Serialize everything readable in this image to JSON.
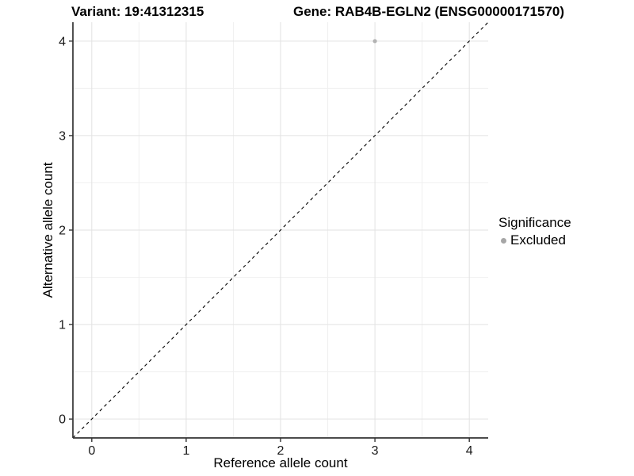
{
  "chart_data": {
    "type": "scatter",
    "titles": {
      "left": "Variant: 19:41312315",
      "right": "Gene: RAB4B-EGLN2 (ENSG00000171570)"
    },
    "xlabel": "Reference allele count",
    "ylabel": "Alternative allele count",
    "xlim": [
      -0.2,
      4.2
    ],
    "ylim": [
      -0.2,
      4.2
    ],
    "x_ticks": [
      0,
      1,
      2,
      3,
      4
    ],
    "y_ticks": [
      0,
      1,
      2,
      3,
      4
    ],
    "minor_ticks": [
      0.5,
      1.5,
      2.5,
      3.5
    ],
    "grid": {
      "major": true,
      "minor": true,
      "major_color": "#e2e2e2",
      "minor_color": "#f0f0f0"
    },
    "axis": {
      "line_color": "#333333",
      "tick_color": "#333333",
      "tick_label_color": "#1a1a1a"
    },
    "reference_line": {
      "kind": "identity y=x",
      "style": "dashed",
      "color": "#000000"
    },
    "series": [
      {
        "name": "Excluded",
        "color": "#b3b3b3",
        "points": [
          {
            "x": 3,
            "y": 4
          }
        ]
      }
    ],
    "legend": {
      "title": "Significance",
      "position": "right",
      "entries": [
        {
          "label": "Excluded",
          "color": "#a6a6a6"
        }
      ]
    }
  }
}
